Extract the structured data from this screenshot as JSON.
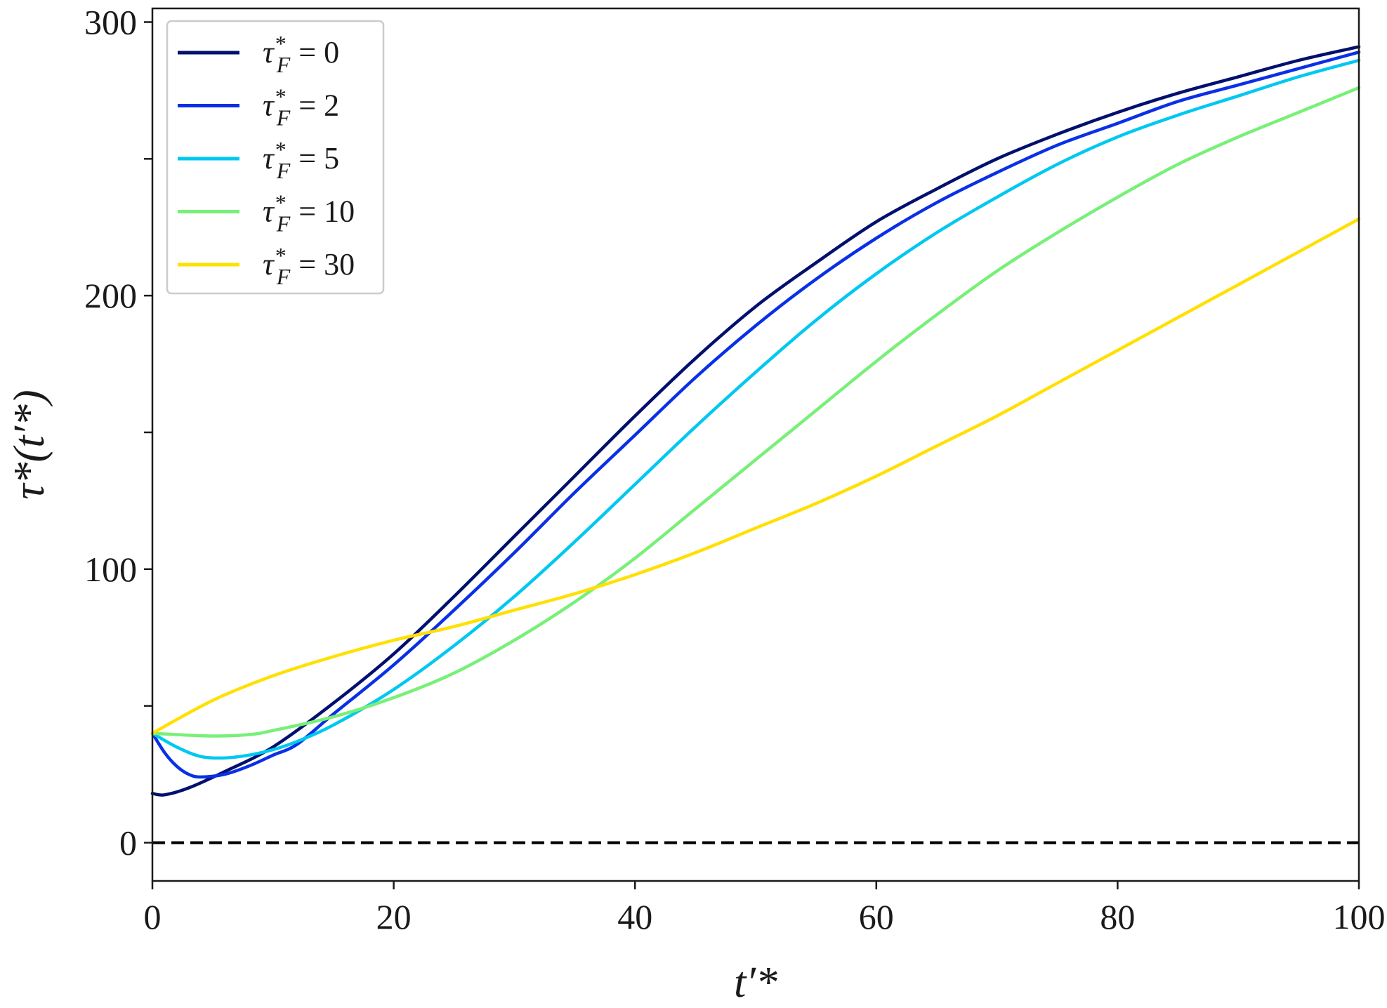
{
  "chart_data": {
    "type": "line",
    "xlabel": "t′*",
    "ylabel": "τ*(t′*)",
    "xlim": [
      0,
      100
    ],
    "ylim": [
      -14,
      305
    ],
    "xticks": [
      0,
      20,
      40,
      60,
      80,
      100
    ],
    "yticks_labeled": [
      0,
      100,
      200,
      300
    ],
    "yticks_minor": [
      50,
      150,
      250
    ],
    "grid": false,
    "legend_position": "top-left",
    "legend_symbol": "τ",
    "legend_superscript": "*",
    "legend_subscript": "F",
    "series": [
      {
        "name": "τ*F = 0",
        "legend_value": "0",
        "color": "#00106e",
        "x": [
          0,
          1,
          3,
          6,
          10,
          15,
          20,
          25,
          30,
          35,
          40,
          45,
          50,
          55,
          60,
          65,
          70,
          75,
          80,
          85,
          90,
          95,
          100
        ],
        "y": [
          18,
          17.5,
          20,
          26,
          35,
          51,
          69,
          90,
          112,
          134,
          156,
          177,
          196,
          212,
          227,
          239,
          250,
          259,
          267,
          274,
          280,
          286,
          291
        ]
      },
      {
        "name": "τ*F = 2",
        "legend_value": "2",
        "color": "#0a30e6",
        "x": [
          0,
          1,
          2,
          3,
          4,
          6,
          8,
          10,
          12,
          15,
          20,
          25,
          30,
          35,
          40,
          45,
          50,
          55,
          60,
          65,
          70,
          75,
          80,
          85,
          90,
          95,
          100
        ],
        "y": [
          40,
          33,
          28,
          25,
          24,
          25,
          28,
          32,
          36,
          47,
          65,
          85,
          106,
          128,
          149,
          170,
          189,
          206,
          221,
          234,
          245,
          255,
          263,
          271,
          277,
          283,
          289
        ]
      },
      {
        "name": "τ*F = 5",
        "legend_value": "5",
        "color": "#00c8f0",
        "x": [
          0,
          2,
          4,
          6,
          8,
          10,
          12,
          15,
          20,
          25,
          30,
          35,
          40,
          45,
          50,
          55,
          60,
          65,
          70,
          75,
          80,
          85,
          90,
          95,
          100
        ],
        "y": [
          40,
          35,
          31.5,
          31,
          32,
          34,
          37,
          43,
          56,
          72,
          90,
          110,
          131,
          152,
          172,
          191,
          208,
          223,
          236,
          248,
          258,
          266,
          273,
          280,
          286
        ]
      },
      {
        "name": "τ*F = 10",
        "legend_value": "10",
        "color": "#78f078",
        "x": [
          0,
          2,
          5,
          8,
          10,
          15,
          20,
          25,
          30,
          35,
          40,
          45,
          50,
          55,
          60,
          65,
          70,
          75,
          80,
          85,
          90,
          95,
          100
        ],
        "y": [
          40,
          39.5,
          39,
          39.5,
          41,
          46,
          53,
          62,
          74,
          88,
          104,
          122,
          140,
          158,
          176,
          193,
          209,
          223,
          236,
          248,
          258,
          267,
          276
        ]
      },
      {
        "name": "τ*F = 30",
        "legend_value": "30",
        "color": "#ffe000",
        "x": [
          0,
          5,
          10,
          15,
          20,
          25,
          30,
          35,
          40,
          45,
          50,
          55,
          60,
          65,
          70,
          75,
          80,
          85,
          90,
          95,
          100
        ],
        "y": [
          40,
          52,
          61,
          68,
          74,
          79,
          85,
          91,
          98,
          106,
          115,
          124,
          134,
          145,
          156,
          168,
          180,
          192,
          204,
          216,
          228
        ]
      }
    ],
    "reference_line": {
      "y": 0,
      "style": "dashed",
      "color": "#000000"
    }
  }
}
